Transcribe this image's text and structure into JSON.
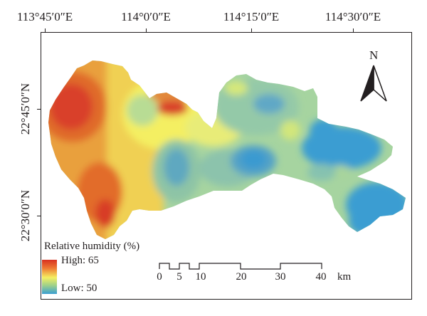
{
  "map": {
    "longitude_labels": [
      "113°45′0″E",
      "114°0′0″E",
      "114°15′0″E",
      "114°30′0″E"
    ],
    "latitude_labels": [
      "22°45′0″N",
      "22°30′0″N"
    ],
    "north_label": "N",
    "legend": {
      "title": "Relative humidity (%)",
      "high_label": "High: 65",
      "low_label": "Low: 50",
      "colors": [
        "#d7301f",
        "#ee7a32",
        "#f4ef62",
        "#9fd08a",
        "#3a9fd2"
      ]
    },
    "scale_bar": {
      "labels": [
        "0",
        "5",
        "10",
        "20",
        "30",
        "40"
      ],
      "unit": "km"
    }
  }
}
